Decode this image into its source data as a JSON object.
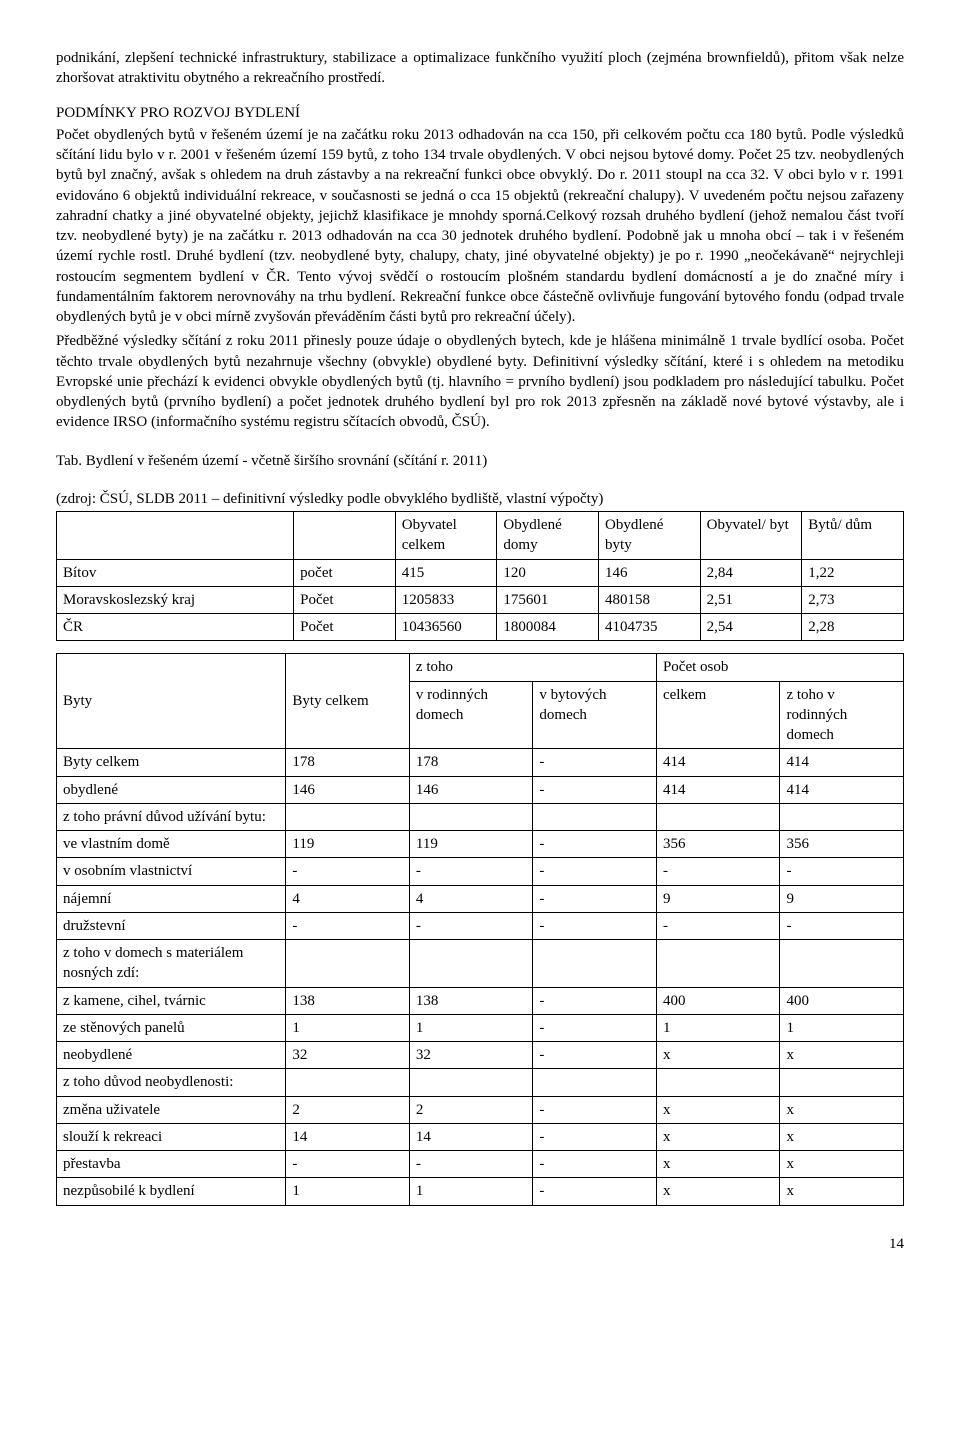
{
  "paragraphs": {
    "intro": "podnikání, zlepšení technické infrastruktury, stabilizace a optimalizace funkčního využití ploch (zejména brownfieldů), přitom však nelze zhoršovat atraktivitu obytného a rekreačního prostředí.",
    "section_title": "PODMÍNKY PRO ROZVOJ BYDLENÍ",
    "p1": "Počet obydlených bytů v řešeném území je na začátku roku 2013 odhadován na cca 150, při celkovém počtu cca 180 bytů. Podle výsledků sčítání lidu bylo v r. 2001 v řešeném území 159 bytů, z toho 134 trvale obydlených. V obci nejsou bytové domy. Počet 25 tzv. neobydlených bytů byl značný, avšak s ohledem na druh zástavby a na rekreační funkci obce obvyklý. Do r. 2011 stoupl na cca 32. V obci bylo v r. 1991 evidováno 6 objektů individuální rekreace, v současnosti se jedná o cca 15 objektů (rekreační chalupy). V uvedeném počtu nejsou zařazeny zahradní chatky a jiné obyvatelné objekty, jejichž klasifikace je mnohdy sporná.Celkový rozsah druhého bydlení (jehož nemalou část tvoří tzv. neobydlené byty) je na začátku r. 2013 odhadován na cca 30 jednotek druhého bydlení. Podobně jak u mnoha obcí – tak i v řešeném území rychle rostl. Druhé bydlení (tzv. neobydlené byty, chalupy, chaty, jiné obyvatelné objekty) je po r. 1990 „neočekávaně“ nejrychleji rostoucím segmentem bydlení v ČR. Tento vývoj svědčí o rostoucím plošném standardu bydlení domácností a je do značné míry i fundamentálním faktorem nerovnováhy na trhu bydlení. Rekreační funkce obce částečně ovlivňuje fungování bytového fondu (odpad trvale obydlených bytů je v obci mírně zvyšován převáděním části bytů pro rekreační účely).",
    "p2": "Předběžné výsledky sčítání z roku 2011 přinesly pouze údaje o obydlených bytech, kde je hlášena minimálně 1 trvale bydlící osoba. Počet těchto trvale obydlených bytů nezahrnuje všechny (obvykle) obydlené byty. Definitivní výsledky sčítání, které i s ohledem na metodiku Evropské unie přechází k evidenci obvykle obydlených bytů (tj. hlavního = prvního bydlení) jsou podkladem pro následující tabulku. Počet obydlených bytů (prvního bydlení) a počet jednotek druhého bydlení byl pro rok 2013 zpřesněn na základě nové bytové výstavby, ale i evidence IRSO (informačního systému registru sčítacích obvodů, ČSÚ).",
    "tab_caption1": "Tab. Bydlení v řešeném území  - včetně širšího srovnání  (sčítání r. 2011)",
    "tab_caption2": "(zdroj: ČSÚ, SLDB 2011 – definitivní výsledky podle obvyklého bydliště, vlastní výpočty)"
  },
  "table1": {
    "headers": [
      "",
      "",
      "Obyvatel celkem",
      "Obydlené domy",
      "Obydlené byty",
      "Obyvatel/ byt",
      "Bytů/ dům"
    ],
    "rows": [
      [
        "Bítov",
        "počet",
        "415",
        "120",
        "146",
        "2,84",
        "1,22"
      ],
      [
        "Moravskoslezský kraj",
        "Počet",
        "1205833",
        "175601",
        "480158",
        "2,51",
        "2,73"
      ],
      [
        "ČR",
        "Počet",
        "10436560",
        "1800084",
        "4104735",
        "2,54",
        "2,28"
      ]
    ]
  },
  "table2": {
    "header_top": [
      "Byty",
      "Byty celkem",
      "z toho",
      "Počet osob"
    ],
    "header_sub": [
      "v rodinných domech",
      "v bytových domech",
      "celkem",
      "z toho v rodinných domech"
    ],
    "rows": [
      [
        "Byty celkem",
        "178",
        "178",
        "-",
        "414",
        "414"
      ],
      [
        "obydlené",
        "146",
        "146",
        "-",
        "414",
        "414"
      ],
      [
        "z toho právní důvod užívání bytu:",
        "",
        "",
        "",
        "",
        ""
      ],
      [
        "ve vlastním domě",
        "119",
        "119",
        "-",
        "356",
        "356"
      ],
      [
        "v osobním vlastnictví",
        "-",
        "-",
        "-",
        "-",
        "-"
      ],
      [
        "nájemní",
        "4",
        "4",
        "-",
        "9",
        "9"
      ],
      [
        "družstevní",
        "-",
        "-",
        "-",
        "-",
        "-"
      ],
      [
        "z toho v domech s materiálem nosných zdí:",
        "",
        "",
        "",
        "",
        ""
      ],
      [
        "z kamene, cihel, tvárnic",
        "138",
        "138",
        "-",
        "400",
        "400"
      ],
      [
        "ze stěnových panelů",
        "1",
        "1",
        "-",
        "1",
        "1"
      ],
      [
        "neobydlené",
        "32",
        "32",
        "-",
        "x",
        "x"
      ],
      [
        "z toho důvod neobydlenosti:",
        "",
        "",
        "",
        "",
        ""
      ],
      [
        "změna uživatele",
        "2",
        "2",
        "-",
        "x",
        "x"
      ],
      [
        "slouží k rekreaci",
        "14",
        "14",
        "-",
        "x",
        "x"
      ],
      [
        "přestavba",
        "-",
        "-",
        "-",
        "x",
        "x"
      ],
      [
        "nezpůsobilé k bydlení",
        "1",
        "1",
        "-",
        "x",
        "x"
      ]
    ]
  },
  "page_number": "14"
}
